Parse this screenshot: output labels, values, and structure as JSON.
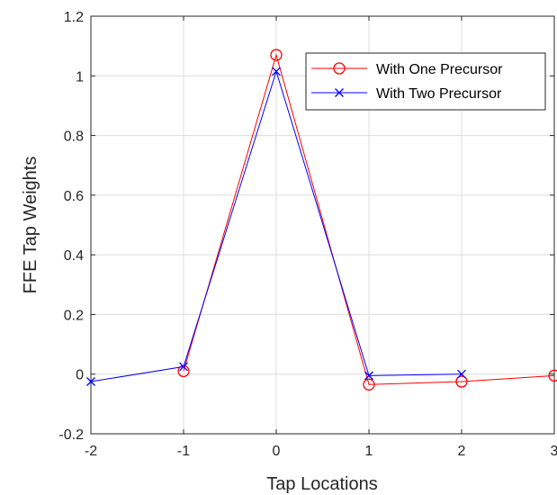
{
  "chart_data": {
    "type": "line",
    "title": "",
    "xlabel": "Tap Locations",
    "ylabel": "FFE Tap Weights",
    "xlim": [
      -2,
      3
    ],
    "ylim": [
      -0.2,
      1.2
    ],
    "xticks": [
      -2,
      -1,
      0,
      1,
      2,
      3
    ],
    "xtick_labels": [
      "-2",
      "-1",
      "0",
      "1",
      "2",
      "3"
    ],
    "yticks": [
      -0.2,
      0,
      0.2,
      0.4,
      0.6,
      0.8,
      1,
      1.2
    ],
    "ytick_labels": [
      "-0.2",
      "0",
      "0.2",
      "0.4",
      "0.6",
      "0.8",
      "1",
      "1.2"
    ],
    "grid": true,
    "legend_position": "top-right",
    "series": [
      {
        "name": "With One Precursor",
        "color": "#ff0000",
        "marker": "circle",
        "x": [
          -1,
          0,
          1,
          2,
          3
        ],
        "y": [
          0.01,
          1.07,
          -0.035,
          -0.025,
          -0.005
        ]
      },
      {
        "name": "With Two Precursor",
        "color": "#0000ff",
        "marker": "x",
        "x": [
          -2,
          -1,
          0,
          1,
          2
        ],
        "y": [
          -0.025,
          0.025,
          1.015,
          -0.005,
          0.0
        ]
      }
    ]
  }
}
